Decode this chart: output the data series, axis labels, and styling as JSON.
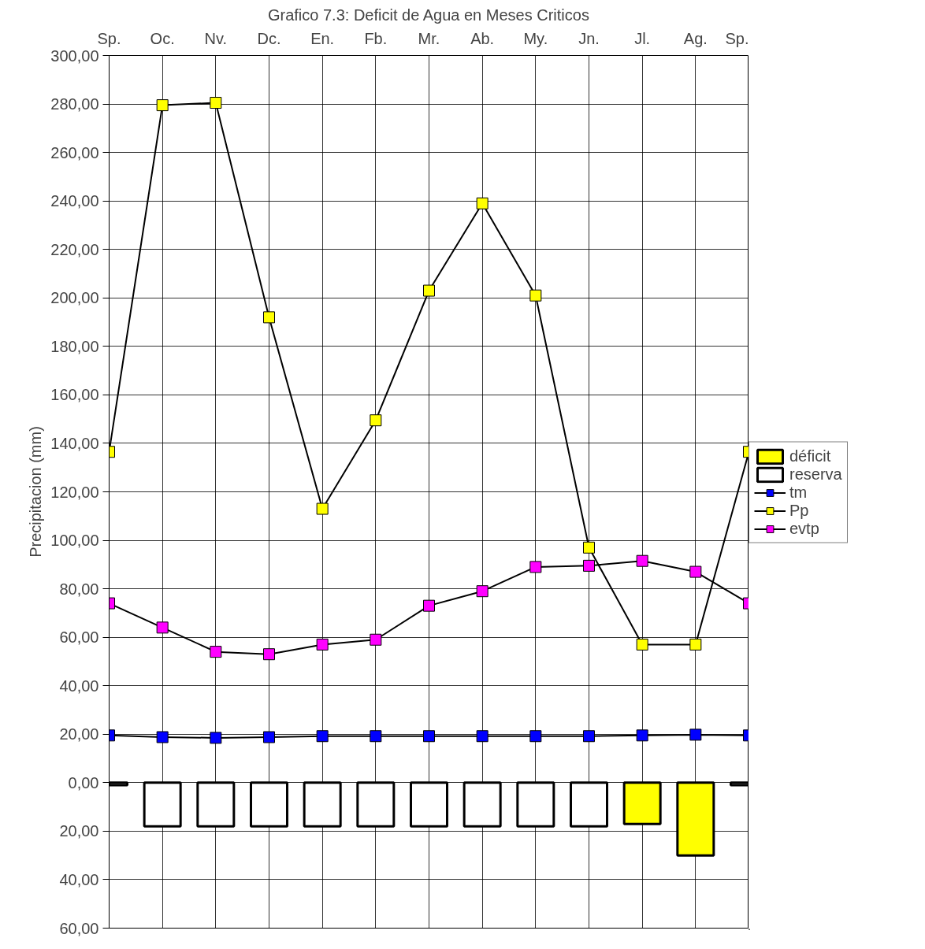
{
  "chart_data": {
    "type": "line",
    "title": "Grafico 7.3: Deficit de Agua en Meses Criticos",
    "ylabel": "Precipitacion (mm)",
    "categories": [
      "Sp.",
      "Oc.",
      "Nv.",
      "Dc.",
      "En.",
      "Fb.",
      "Mr.",
      "Ab.",
      "My.",
      "Jn.",
      "Jl.",
      "Ag.",
      "Sp."
    ],
    "series": [
      {
        "name": "déficit",
        "type": "bar",
        "color": "#ffff00",
        "values": [
          null,
          null,
          null,
          null,
          null,
          null,
          null,
          null,
          null,
          null,
          -17,
          -30,
          null
        ]
      },
      {
        "name": "reserva",
        "type": "bar",
        "color": "#ffffff",
        "values": [
          -1,
          -18,
          -18,
          -18,
          -18,
          -18,
          -18,
          -18,
          -18,
          -18,
          null,
          null,
          -1
        ]
      },
      {
        "name": "tm",
        "color": "#0000ff",
        "values": [
          19.5,
          18.8,
          18.5,
          18.8,
          19.2,
          19.2,
          19.2,
          19.2,
          19.2,
          19.2,
          19.5,
          19.8,
          19.5
        ]
      },
      {
        "name": "Pp",
        "color": "#ffff00",
        "values": [
          136.5,
          279.5,
          280.5,
          192,
          113,
          149.5,
          203,
          239,
          201,
          97,
          57,
          57,
          136.5
        ]
      },
      {
        "name": "evtp",
        "color": "#ff00ff",
        "values": [
          74,
          64,
          54,
          53,
          57,
          59,
          73,
          79,
          89,
          89.5,
          91.5,
          87,
          74
        ]
      }
    ],
    "ylim": [
      -60,
      300
    ],
    "yticks": [
      {
        "value": -60,
        "label": "60,00"
      },
      {
        "value": -40,
        "label": "40,00"
      },
      {
        "value": -20,
        "label": "20,00"
      },
      {
        "value": 0,
        "label": "0,00"
      },
      {
        "value": 20,
        "label": "20,00"
      },
      {
        "value": 40,
        "label": "40,00"
      },
      {
        "value": 60,
        "label": "60,00"
      },
      {
        "value": 80,
        "label": "80,00"
      },
      {
        "value": 100,
        "label": "100,00"
      },
      {
        "value": 120,
        "label": "120,00"
      },
      {
        "value": 140,
        "label": "140,00"
      },
      {
        "value": 160,
        "label": "160,00"
      },
      {
        "value": 180,
        "label": "180,00"
      },
      {
        "value": 200,
        "label": "200,00"
      },
      {
        "value": 220,
        "label": "220,00"
      },
      {
        "value": 240,
        "label": "240,00"
      },
      {
        "value": 260,
        "label": "260,00"
      },
      {
        "value": 280,
        "label": "280,00"
      },
      {
        "value": 300,
        "label": "300,00"
      }
    ],
    "grid": true,
    "legend": "right",
    "marker": "square",
    "line_style": "solid"
  }
}
